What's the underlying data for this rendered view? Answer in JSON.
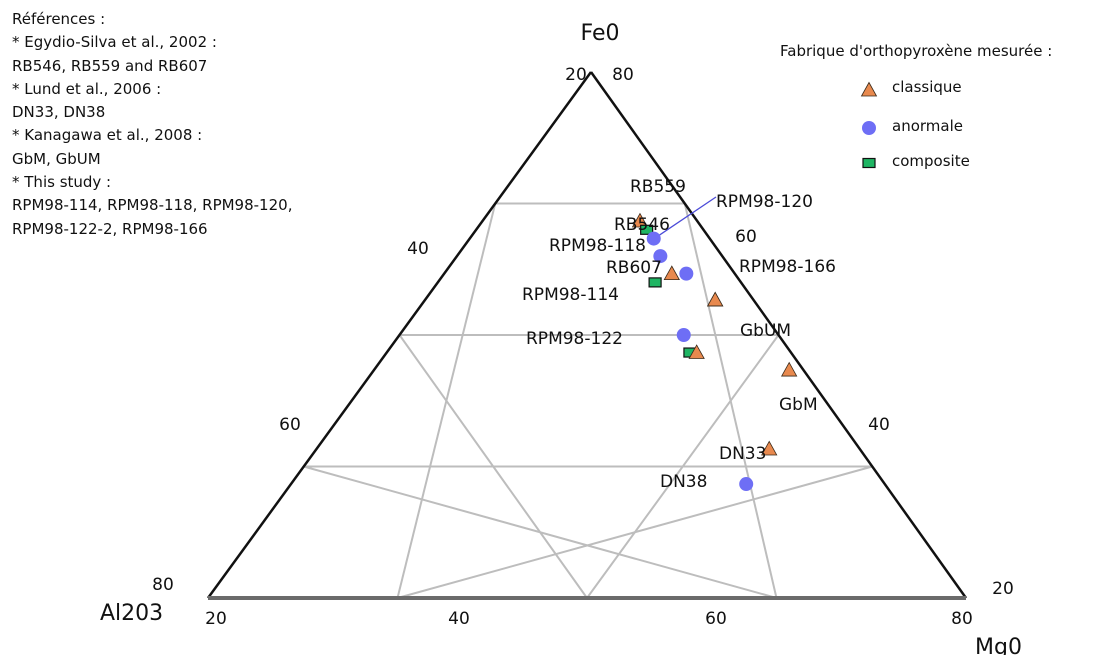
{
  "chart_data": {
    "type": "scatter",
    "subtype": "ternary",
    "axes": {
      "top": "Fe0",
      "left": "Al203",
      "right": "Mg0"
    },
    "ticks": {
      "left_edge": [
        "20",
        "40",
        "60",
        "80"
      ],
      "right_edge": [
        "80",
        "60",
        "40",
        "20"
      ],
      "bottom_edge": [
        "20",
        "40",
        "60",
        "80"
      ]
    },
    "grid": true,
    "legend_position": "top-right",
    "legend": {
      "title": "Fabrique d'orthopyroxène mesurée :",
      "entries": [
        {
          "label": "classique",
          "marker": "triangle",
          "color": "#e8894e"
        },
        {
          "label": "anormale",
          "marker": "circle",
          "color": "#6e6ef5"
        },
        {
          "label": "composite",
          "marker": "square",
          "color": "#1fb563"
        }
      ]
    },
    "points": [
      {
        "label": "RB559",
        "fabric": "classique",
        "FeO": 63,
        "MgO": 64,
        "Al2O3": 73
      },
      {
        "label": "RB546",
        "fabric": "composite",
        "FeO": 62,
        "MgO": 65,
        "Al2O3": 73
      },
      {
        "label": "RPM98-120",
        "fabric": "anormale",
        "FeO": 61,
        "MgO": 66,
        "Al2O3": 73
      },
      {
        "label": "RPM98-118",
        "fabric": "anormale",
        "FeO": 59,
        "MgO": 66,
        "Al2O3": 75
      },
      {
        "label": "RB607",
        "fabric": "classique",
        "FeO": 57,
        "MgO": 67,
        "Al2O3": 76
      },
      {
        "label": "RPM98-166",
        "fabric": "anormale",
        "FeO": 57,
        "MgO": 70,
        "Al2O3": 73
      },
      {
        "label": "RPM98-114",
        "fabric": "composite",
        "FeO": 56,
        "MgO": 63,
        "Al2O3": 81
      },
      {
        "label": "",
        "fabric": "classique",
        "FeO": 54,
        "MgO": 73,
        "Al2O3": 73
      },
      {
        "label": "GbUM",
        "fabric": "classique",
        "FeO": 54,
        "MgO": 73,
        "Al2O3": 73
      },
      {
        "label": "",
        "fabric": "anormale",
        "FeO": 50,
        "MgO": 65,
        "Al2O3": 85
      },
      {
        "label": "RPM98-122",
        "fabric": "composite",
        "FeO": 48,
        "MgO": 65,
        "Al2O3": 87
      },
      {
        "label": "",
        "fabric": "classique",
        "FeO": 48,
        "MgO": 66,
        "Al2O3": 86
      },
      {
        "label": "GbM",
        "fabric": "classique",
        "FeO": 46,
        "MgO": 78,
        "Al2O3": 76
      },
      {
        "label": "DN33",
        "fabric": "classique",
        "FeO": 37,
        "MgO": 70,
        "Al2O3": 93
      },
      {
        "label": "DN38",
        "fabric": "anormale",
        "FeO": 33,
        "MgO": 66,
        "Al2O3": 101
      }
    ]
  },
  "references": {
    "lines": [
      "Références :",
      "* Egydio-Silva et al., 2002 :",
      "RB546, RB559 and RB607",
      "* Lund et al., 2006 :",
      "DN33, DN38",
      "* Kanagawa et al., 2008 :",
      "GbM, GbUM",
      "* This study :",
      "RPM98-114, RPM98-118, RPM98-120,",
      "RPM98-122-2, RPM98-166"
    ]
  }
}
